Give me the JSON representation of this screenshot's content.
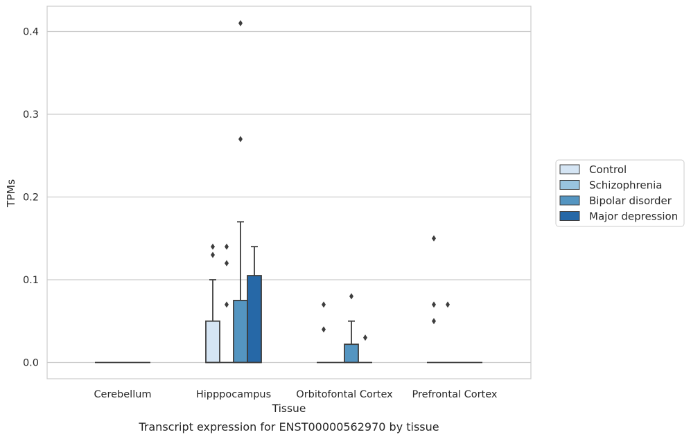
{
  "chart_data": {
    "type": "box",
    "xlabel": "Tissue",
    "ylabel": "TPMs",
    "caption": "Transcript expression for ENST00000562970 by tissue",
    "ylim": [
      -0.02,
      0.43
    ],
    "yticks": [
      "0.0",
      "0.1",
      "0.2",
      "0.3",
      "0.4"
    ],
    "ytick_values": [
      0.0,
      0.1,
      0.2,
      0.3,
      0.4
    ],
    "grid": "horizontal",
    "legend_position": "right-center",
    "categories": [
      "Cerebellum",
      "Hipppocampus",
      "Orbitofontal Cortex",
      "Prefrontal Cortex"
    ],
    "series": [
      {
        "name": "Control",
        "color": "#d5e5f4",
        "boxes": [
          {
            "whislo": 0,
            "q1": 0,
            "med": 0,
            "q3": 0,
            "whishi": 0,
            "fliers": []
          },
          {
            "whislo": 0,
            "q1": 0,
            "med": 0,
            "q3": 0.05,
            "whishi": 0.1,
            "fliers": [
              0.13,
              0.14
            ]
          },
          {
            "whislo": 0,
            "q1": 0,
            "med": 0,
            "q3": 0,
            "whishi": 0,
            "fliers": [
              0.04,
              0.07
            ]
          },
          {
            "whislo": 0,
            "q1": 0,
            "med": 0,
            "q3": 0,
            "whishi": 0,
            "fliers": [
              0.05,
              0.07,
              0.15
            ]
          }
        ]
      },
      {
        "name": "Schizophrenia",
        "color": "#99c4df",
        "boxes": [
          {
            "whislo": 0,
            "q1": 0,
            "med": 0,
            "q3": 0,
            "whishi": 0,
            "fliers": []
          },
          {
            "whislo": 0,
            "q1": 0,
            "med": 0,
            "q3": 0,
            "whishi": 0,
            "fliers": [
              0.07,
              0.12,
              0.14
            ]
          },
          {
            "whislo": 0,
            "q1": 0,
            "med": 0,
            "q3": 0,
            "whishi": 0,
            "fliers": []
          },
          {
            "whislo": 0,
            "q1": 0,
            "med": 0,
            "q3": 0,
            "whishi": 0,
            "fliers": [
              0.07
            ]
          }
        ]
      },
      {
        "name": "Bipolar disorder",
        "color": "#5495c1",
        "boxes": [
          {
            "whislo": 0,
            "q1": 0,
            "med": 0,
            "q3": 0,
            "whishi": 0,
            "fliers": []
          },
          {
            "whislo": 0,
            "q1": 0,
            "med": 0,
            "q3": 0.075,
            "whishi": 0.17,
            "fliers": [
              0.27,
              0.41
            ]
          },
          {
            "whislo": 0,
            "q1": 0,
            "med": 0,
            "q3": 0.022,
            "whishi": 0.05,
            "fliers": [
              0.08
            ]
          },
          {
            "whislo": 0,
            "q1": 0,
            "med": 0,
            "q3": 0,
            "whishi": 0,
            "fliers": []
          }
        ]
      },
      {
        "name": "Major depression",
        "color": "#2668a7",
        "boxes": [
          {
            "whislo": 0,
            "q1": 0,
            "med": 0,
            "q3": 0,
            "whishi": 0,
            "fliers": []
          },
          {
            "whislo": 0,
            "q1": 0,
            "med": 0,
            "q3": 0.105,
            "whishi": 0.14,
            "fliers": []
          },
          {
            "whislo": 0,
            "q1": 0,
            "med": 0,
            "q3": 0,
            "whishi": 0,
            "fliers": [
              0.03
            ]
          },
          {
            "whislo": 0,
            "q1": 0,
            "med": 0,
            "q3": 0,
            "whishi": 0,
            "fliers": []
          }
        ]
      }
    ]
  }
}
